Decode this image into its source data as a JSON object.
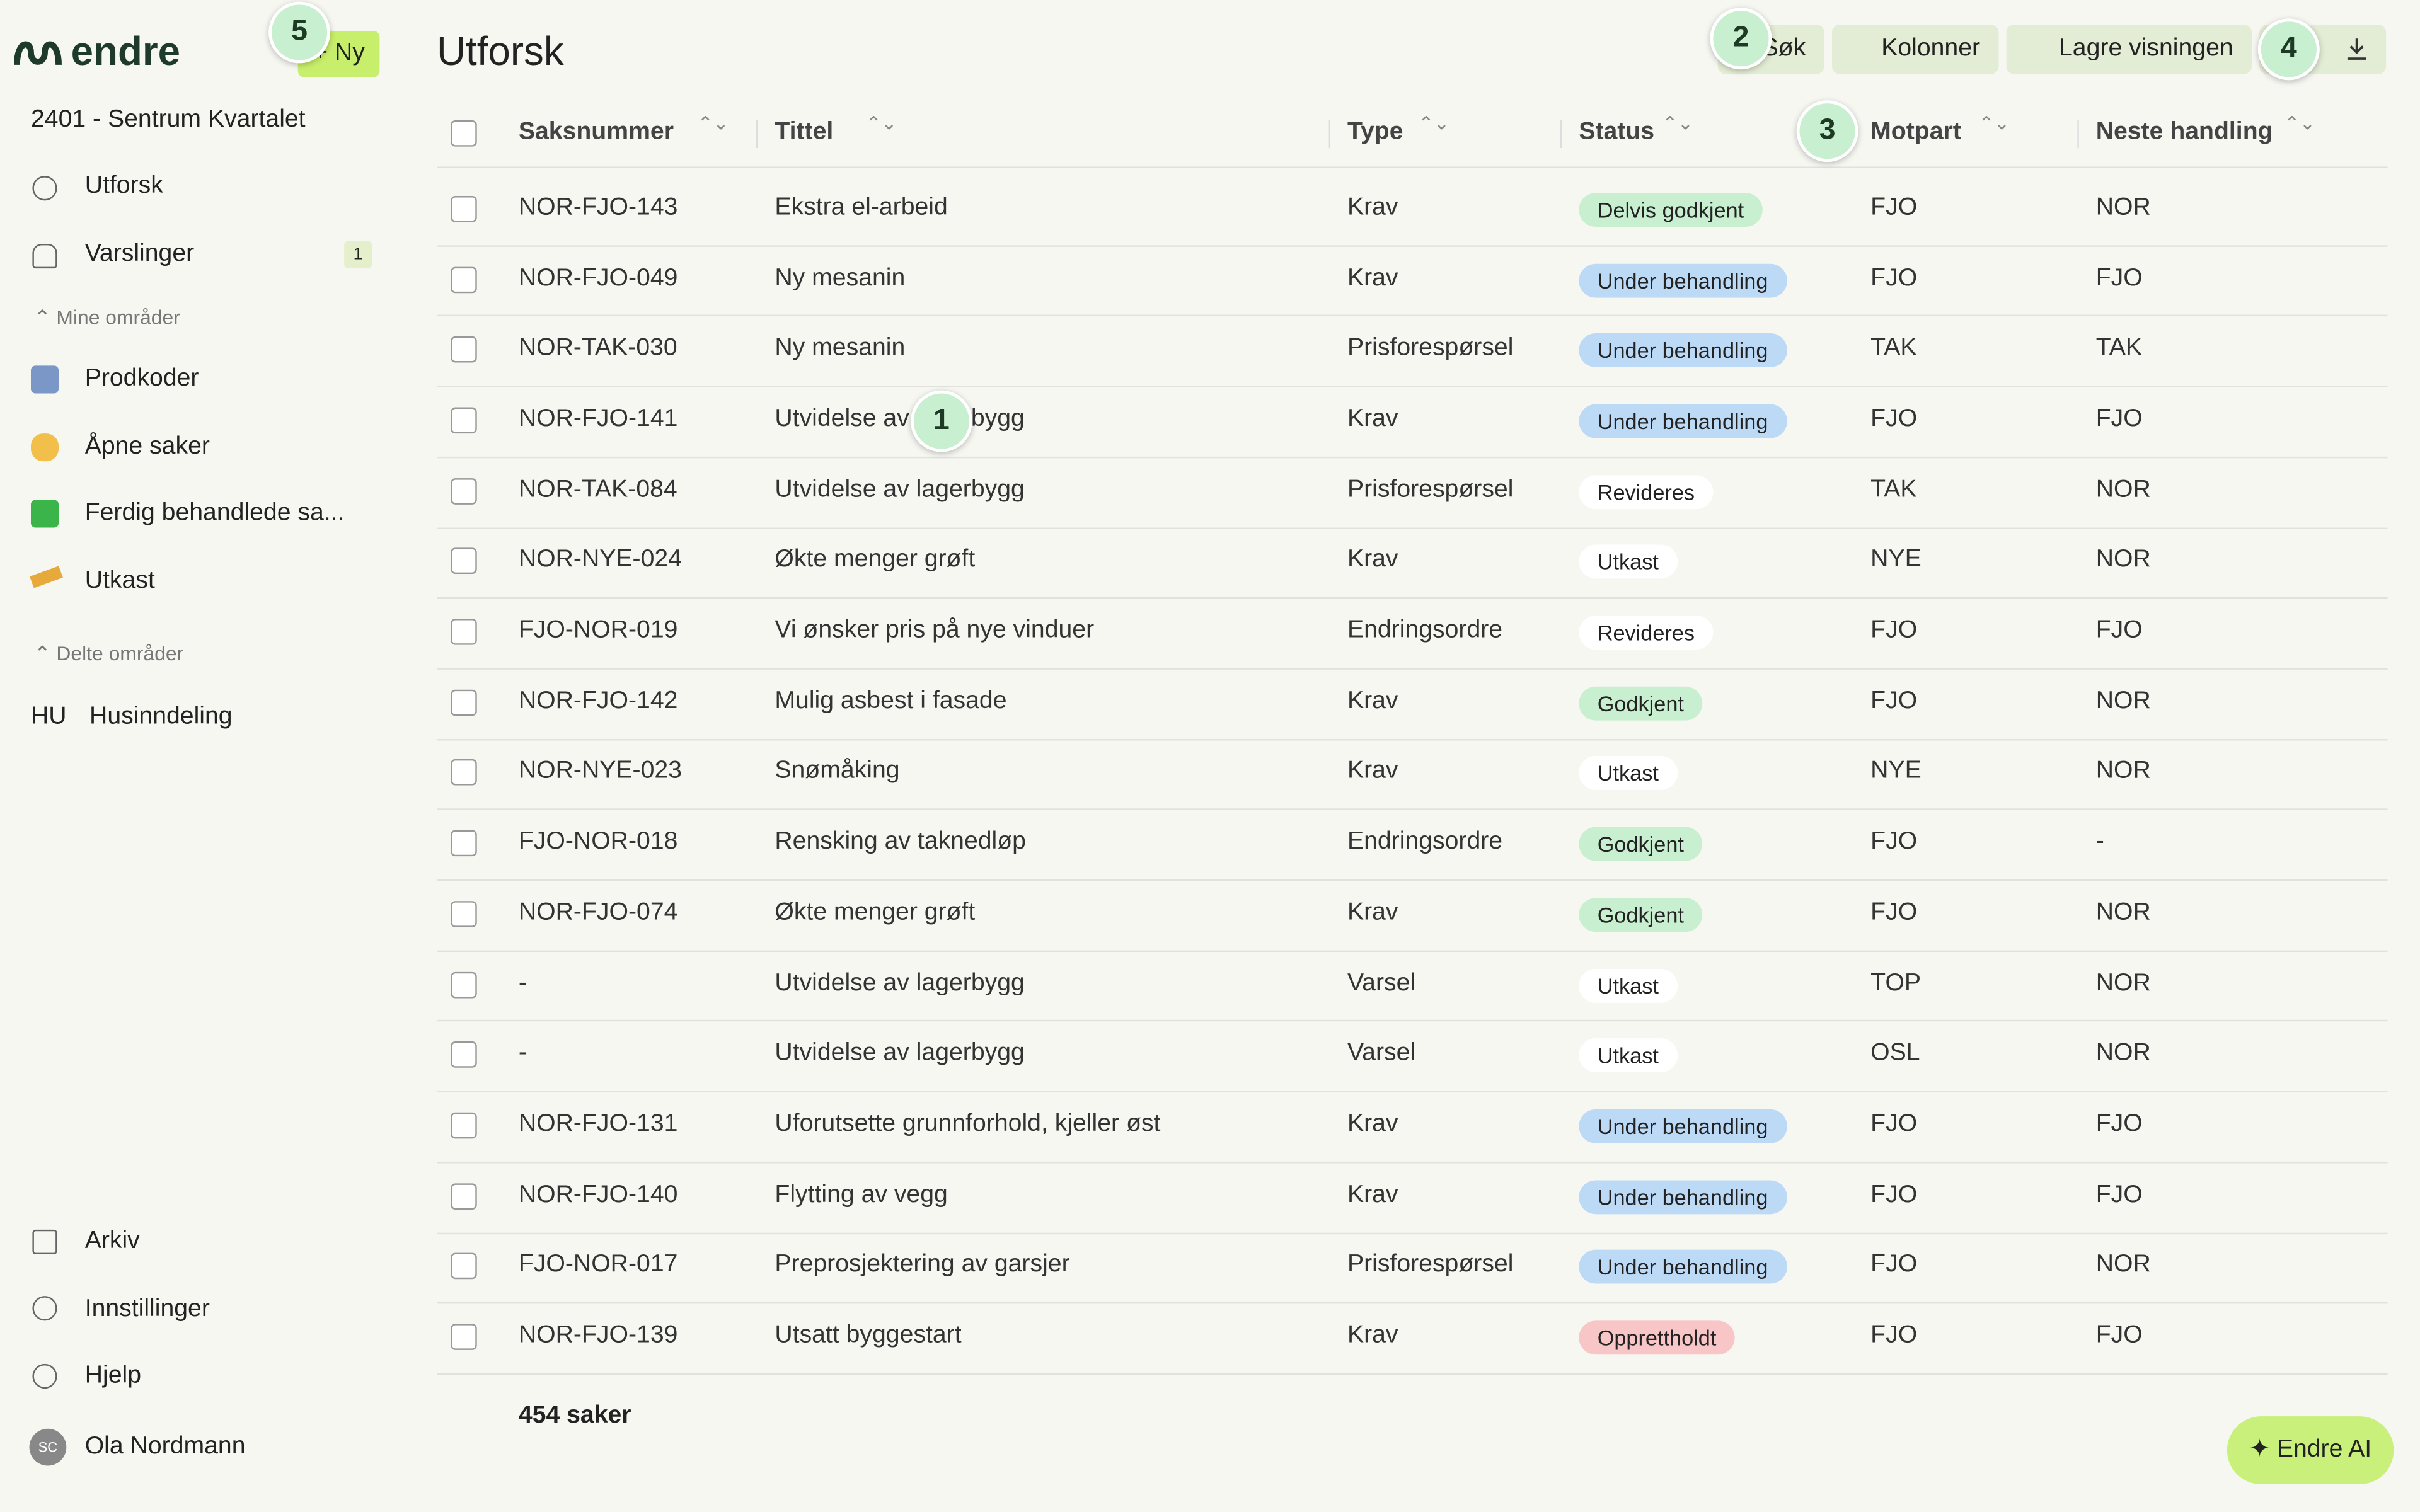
{
  "sidebar": {
    "logo": "endre",
    "new_button": "+ Ny",
    "project": "2401 - Sentrum Kvartalet",
    "nav": [
      {
        "label": "Utforsk"
      },
      {
        "label": "Varslinger",
        "badge": "1"
      }
    ],
    "my_areas": {
      "title": "Mine områder",
      "items": [
        "Prodkoder",
        "Åpne saker",
        "Ferdig behandlede sa...",
        "Utkast"
      ]
    },
    "shared_areas": {
      "title": "Delte områder",
      "items": [
        {
          "initials": "HU",
          "label": "Husinndeling"
        }
      ]
    },
    "bottom": [
      "Arkiv",
      "Innstillinger",
      "Hjelp"
    ],
    "user": {
      "initials": "SC",
      "name": "Ola Nordmann"
    }
  },
  "header": {
    "title": "Utforsk",
    "buttons": [
      "Søk",
      "Kolonner",
      "Lagre visningen"
    ]
  },
  "table": {
    "columns": [
      "Saksnummer",
      "Tittel",
      "Type",
      "Status",
      "Motpart",
      "Neste handling"
    ],
    "rows": [
      [
        "NOR-FJO-143",
        "Ekstra el-arbeid",
        "Krav",
        "Delvis godkjent",
        "FJO",
        "NOR"
      ],
      [
        "NOR-FJO-049",
        "Ny mesanin",
        "Krav",
        "Under behandling",
        "FJO",
        "FJO"
      ],
      [
        "NOR-TAK-030",
        "Ny mesanin",
        "Prisforespørsel",
        "Under behandling",
        "TAK",
        "TAK"
      ],
      [
        "NOR-FJO-141",
        "Utvidelse av lagerbygg",
        "Krav",
        "Under behandling",
        "FJO",
        "FJO"
      ],
      [
        "NOR-TAK-084",
        "Utvidelse av lagerbygg",
        "Prisforespørsel",
        "Revideres",
        "TAK",
        "NOR"
      ],
      [
        "NOR-NYE-024",
        "Økte menger grøft",
        "Krav",
        "Utkast",
        "NYE",
        "NOR"
      ],
      [
        "FJO-NOR-019",
        "Vi ønsker pris på nye vinduer",
        "Endringsordre",
        "Revideres",
        "FJO",
        "FJO"
      ],
      [
        "NOR-FJO-142",
        "Mulig asbest i fasade",
        "Krav",
        "Godkjent",
        "FJO",
        "NOR"
      ],
      [
        "NOR-NYE-023",
        "Snømåking",
        "Krav",
        "Utkast",
        "NYE",
        "NOR"
      ],
      [
        "FJO-NOR-018",
        "Rensking av taknedløp",
        "Endringsordre",
        "Godkjent",
        "FJO",
        "-"
      ],
      [
        "NOR-FJO-074",
        "Økte menger grøft",
        "Krav",
        "Godkjent",
        "FJO",
        "NOR"
      ],
      [
        "-",
        "Utvidelse av lagerbygg",
        "Varsel",
        "Utkast",
        "TOP",
        "NOR"
      ],
      [
        "-",
        "Utvidelse av lagerbygg",
        "Varsel",
        "Utkast",
        "OSL",
        "NOR"
      ],
      [
        "NOR-FJO-131",
        "Uforutsette grunnforhold, kjeller øst",
        "Krav",
        "Under behandling",
        "FJO",
        "FJO"
      ],
      [
        "NOR-FJO-140",
        "Flytting av vegg",
        "Krav",
        "Under behandling",
        "FJO",
        "FJO"
      ],
      [
        "FJO-NOR-017",
        "Preprosjektering av garsjer",
        "Prisforespørsel",
        "Under behandling",
        "FJO",
        "NOR"
      ],
      [
        "NOR-FJO-139",
        "Utsatt byggestart",
        "Krav",
        "Opprettholdt",
        "FJO",
        "FJO"
      ]
    ],
    "status_colors": [
      "#c8f0d0",
      "#bcd9f6",
      "#bcd9f6",
      "#bcd9f6",
      "#ffffff",
      "#ffffff",
      "#ffffff",
      "#c8f0d0",
      "#ffffff",
      "#c8f0d0",
      "#c8f0d0",
      "#ffffff",
      "#ffffff",
      "#bcd9f6",
      "#bcd9f6",
      "#bcd9f6",
      "#f8c6c6"
    ],
    "footer": "454 saker"
  },
  "ai_button": "Endre AI",
  "markers": [
    "1",
    "2",
    "3",
    "4",
    "5"
  ]
}
